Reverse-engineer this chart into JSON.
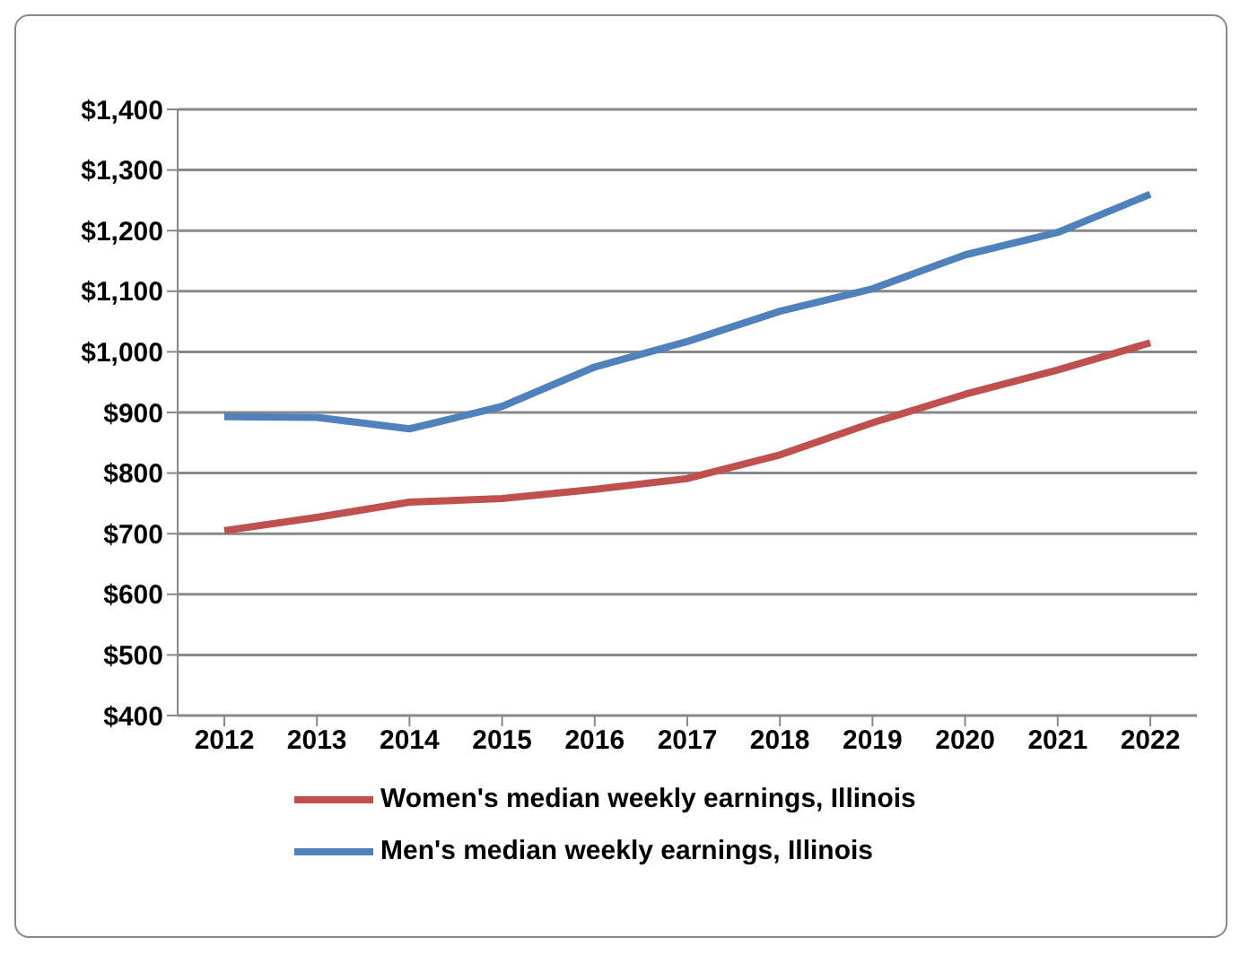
{
  "chart_data": {
    "type": "line",
    "categories": [
      "2012",
      "2013",
      "2014",
      "2015",
      "2016",
      "2017",
      "2018",
      "2019",
      "2020",
      "2021",
      "2022"
    ],
    "series": [
      {
        "name": "Women's median weekly earnings, Illinois",
        "color": "#c0504d",
        "values": [
          705,
          727,
          752,
          758,
          773,
          791,
          830,
          883,
          930,
          970,
          1015
        ]
      },
      {
        "name": "Men's median weekly earnings, Illinois",
        "color": "#4f81bd",
        "values": [
          893,
          892,
          873,
          910,
          975,
          1017,
          1067,
          1104,
          1160,
          1197,
          1260
        ]
      }
    ],
    "ylim": [
      400,
      1400
    ],
    "yticks": [
      {
        "value": 400,
        "label": "$400"
      },
      {
        "value": 500,
        "label": "$500"
      },
      {
        "value": 600,
        "label": "$600"
      },
      {
        "value": 700,
        "label": "$700"
      },
      {
        "value": 800,
        "label": "$800"
      },
      {
        "value": 900,
        "label": "$900"
      },
      {
        "value": 1000,
        "label": "$1,000"
      },
      {
        "value": 1100,
        "label": "$1,100"
      },
      {
        "value": 1200,
        "label": "$1,200"
      },
      {
        "value": 1300,
        "label": "$1,300"
      },
      {
        "value": 1400,
        "label": "$1,400"
      }
    ],
    "grid": "y",
    "legend": "bottom",
    "marker": "none",
    "line_style": "solid"
  }
}
